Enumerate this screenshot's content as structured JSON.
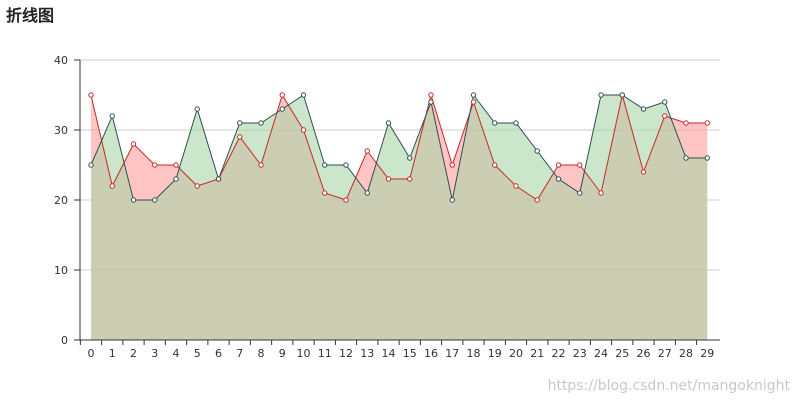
{
  "chart_data": {
    "type": "area",
    "title": "折线图",
    "xlabel": "",
    "ylabel": "",
    "categories": [
      "0",
      "1",
      "2",
      "3",
      "4",
      "5",
      "6",
      "7",
      "8",
      "9",
      "10",
      "11",
      "12",
      "13",
      "14",
      "15",
      "16",
      "17",
      "18",
      "19",
      "20",
      "21",
      "22",
      "23",
      "24",
      "25",
      "26",
      "27",
      "28",
      "29"
    ],
    "ylim": [
      0,
      40
    ],
    "yticks": [
      0,
      10,
      20,
      30,
      40
    ],
    "grid": true,
    "series": [
      {
        "values": [
          35,
          22,
          28,
          25,
          25,
          22,
          23,
          29,
          25,
          35,
          30,
          21,
          20,
          27,
          23,
          23,
          35,
          25,
          34,
          25,
          22,
          20,
          25,
          25,
          21,
          35,
          24,
          32,
          31,
          31
        ],
        "line_color": "#c62828",
        "fill_color": "#ff9c9c"
      },
      {
        "values": [
          25,
          32,
          20,
          20,
          23,
          33,
          23,
          31,
          31,
          33,
          35,
          25,
          25,
          21,
          31,
          26,
          34,
          20,
          35,
          31,
          31,
          27,
          23,
          21,
          35,
          35,
          33,
          34,
          26,
          26
        ],
        "line_color": "#2f4f4f",
        "fill_color": "#a8d5a8"
      }
    ]
  },
  "watermark": "https://blog.csdn.net/mangoknight"
}
